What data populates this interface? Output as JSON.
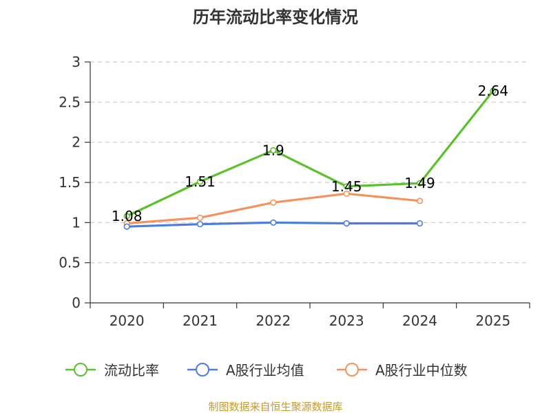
{
  "chart_data": {
    "type": "line",
    "title": "历年流动比率变化情况",
    "categories": [
      "2020",
      "2021",
      "2022",
      "2023",
      "2024",
      "2025"
    ],
    "ylim": [
      0,
      3
    ],
    "yticks": [
      "0",
      "0.5",
      "1",
      "1.5",
      "2",
      "2.5",
      "3"
    ],
    "series": [
      {
        "name": "流动比率",
        "color": "#5ac12b",
        "values": [
          1.08,
          1.51,
          1.9,
          1.45,
          1.49,
          2.64
        ],
        "labels": [
          "1.08",
          "1.51",
          "1.9",
          "1.45",
          "1.49",
          "2.64"
        ]
      },
      {
        "name": "A股行业均值",
        "color": "#4a7de0",
        "values": [
          0.95,
          0.98,
          1.0,
          0.99,
          0.99,
          null
        ]
      },
      {
        "name": "A股行业中位数",
        "color": "#f5925c",
        "values": [
          0.99,
          1.06,
          1.25,
          1.36,
          1.27,
          null
        ]
      }
    ],
    "grid": true,
    "legend": "bottom"
  },
  "source_text": "制图数据来自恒生聚源数据库",
  "colors": {
    "source": "#c59a2c",
    "axis": "#333333",
    "grid": "#cccccc"
  }
}
